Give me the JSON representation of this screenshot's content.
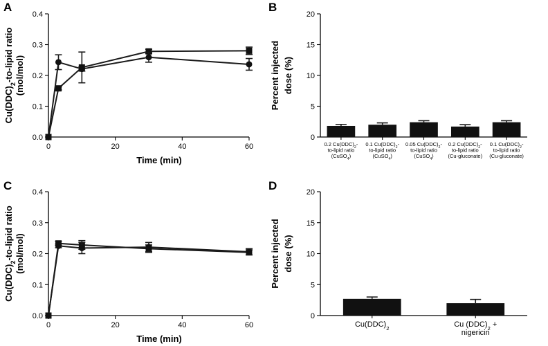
{
  "chart_data": [
    {
      "panel": "A",
      "type": "line",
      "xlabel": "Time (min)",
      "ylabel_line1": "Cu(DDC)",
      "ylabel_sub": "2",
      "ylabel_line1_rest": "-to-lipid ratio",
      "ylabel_line2": "(mol/mol)",
      "xlim": [
        0,
        60
      ],
      "ylim": [
        0,
        0.4
      ],
      "xticks": [
        "0",
        "20",
        "40",
        "60"
      ],
      "yticks": [
        "0.0",
        "0.1",
        "0.2",
        "0.3",
        "0.4"
      ],
      "series": [
        {
          "name": "square",
          "marker": "square",
          "x": [
            0,
            3,
            10,
            30,
            60
          ],
          "y": [
            0,
            0.158,
            0.226,
            0.278,
            0.28
          ],
          "err": [
            0,
            0.005,
            0.05,
            0.007,
            0.012
          ]
        },
        {
          "name": "circle",
          "marker": "circle",
          "x": [
            0,
            3,
            10,
            30,
            60
          ],
          "y": [
            0,
            0.243,
            0.221,
            0.259,
            0.236
          ],
          "err": [
            0,
            0.024,
            0.007,
            0.016,
            0.019
          ]
        }
      ]
    },
    {
      "panel": "B",
      "type": "bar",
      "ylabel_line1": "Percent injected",
      "ylabel_line2": "dose (%)",
      "ylim": [
        0,
        20
      ],
      "yticks": [
        "0",
        "5",
        "10",
        "15",
        "20"
      ],
      "categories": [
        {
          "l1a": "0.2 Cu(DDC)",
          "l1s": "2",
          "l1b": "-",
          "l2": "to-lipid ratio",
          "l3a": "(CuSO",
          "l3s": "4",
          "l3b": ")"
        },
        {
          "l1a": "0.1 Cu(DDC)",
          "l1s": "2",
          "l1b": "-",
          "l2": "to-lipid ratio",
          "l3a": "(CuSO",
          "l3s": "4",
          "l3b": ")"
        },
        {
          "l1a": "0.05 Cu(DDC)",
          "l1s": "2",
          "l1b": "-",
          "l2": "to-lipid ratio",
          "l3a": "(CuSO",
          "l3s": "4",
          "l3b": ")"
        },
        {
          "l1a": "0.2 Cu(DDC)",
          "l1s": "2",
          "l1b": "-",
          "l2": "to-lipid ratio",
          "l3a": "(Cu-gluconate)",
          "l3s": "",
          "l3b": ""
        },
        {
          "l1a": "0.1 Cu(DDC)",
          "l1s": "2",
          "l1b": "-",
          "l2": "to-lipid ratio",
          "l3a": "(Cu-gluconate)",
          "l3s": "",
          "l3b": ""
        }
      ],
      "values": [
        1.8,
        2.0,
        2.4,
        1.7,
        2.4
      ],
      "err": [
        0.25,
        0.3,
        0.25,
        0.3,
        0.25
      ]
    },
    {
      "panel": "C",
      "type": "line",
      "xlabel": "Time (min)",
      "ylabel_line1": "Cu(DDC)",
      "ylabel_sub": "2",
      "ylabel_line1_rest": "-to-lipid ratio",
      "ylabel_line2": "(mol/mol)",
      "xlim": [
        0,
        60
      ],
      "ylim": [
        0,
        0.4
      ],
      "xticks": [
        "0",
        "20",
        "40",
        "60"
      ],
      "yticks": [
        "0.0",
        "0.1",
        "0.2",
        "0.3",
        "0.4"
      ],
      "series": [
        {
          "name": "square",
          "marker": "square",
          "x": [
            0,
            3,
            10,
            30,
            60
          ],
          "y": [
            0,
            0.233,
            0.228,
            0.216,
            0.204
          ],
          "err": [
            0,
            0.007,
            0.014,
            0.012,
            0.008
          ]
        },
        {
          "name": "circle",
          "marker": "circle",
          "x": [
            0,
            3,
            10,
            30,
            60
          ],
          "y": [
            0,
            0.225,
            0.218,
            0.221,
            0.206
          ],
          "err": [
            0,
            0.006,
            0.018,
            0.015,
            0.01
          ]
        }
      ]
    },
    {
      "panel": "D",
      "type": "bar",
      "ylabel_line1": "Percent injected",
      "ylabel_line2": "dose (%)",
      "ylim": [
        0,
        20
      ],
      "yticks": [
        "0",
        "5",
        "10",
        "15",
        "20"
      ],
      "categories": [
        {
          "l1a": "Cu(DDC)",
          "l1s": "2",
          "l1b": "",
          "l2": ""
        },
        {
          "l1a": "Cu (DDC)",
          "l1s": "2",
          "l1b": " +",
          "l2": "nigericin"
        }
      ],
      "values": [
        2.7,
        2.0
      ],
      "err": [
        0.3,
        0.6
      ]
    }
  ]
}
